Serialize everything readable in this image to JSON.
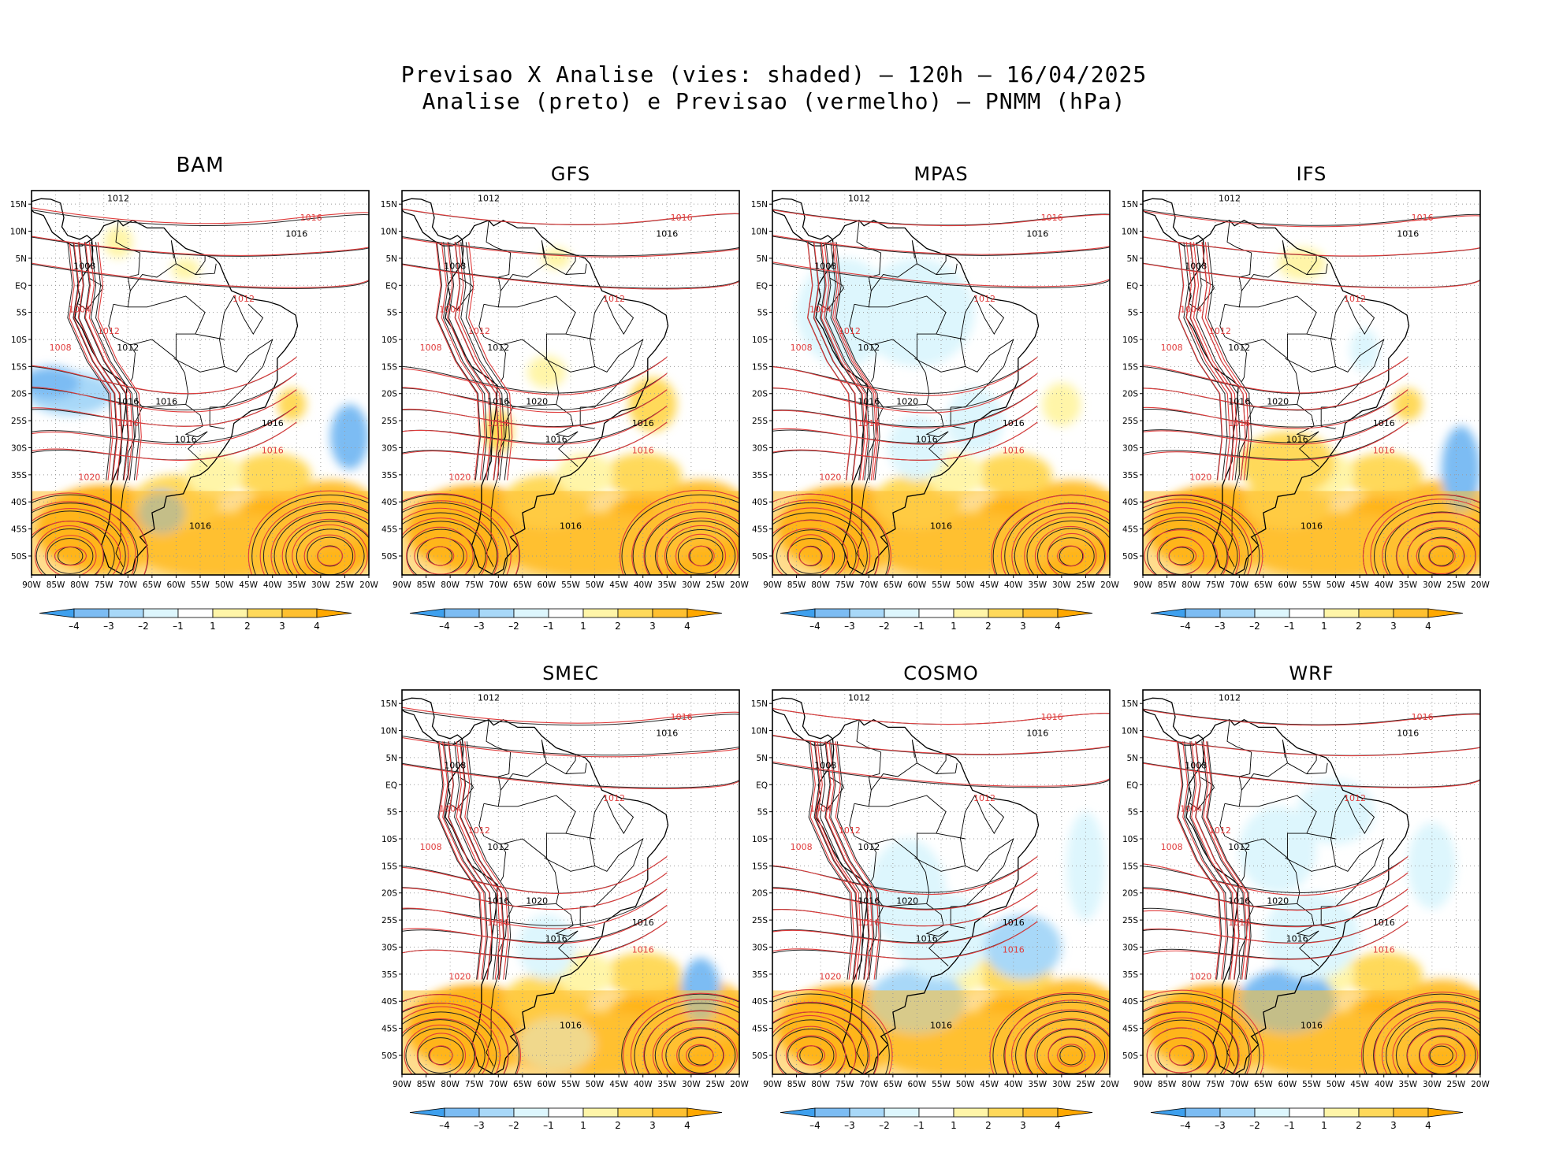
{
  "title": {
    "line1": "Previsao X Analise (vies: shaded) – 120h – 16/04/2025",
    "line2": "Analise (preto) e Previsao (vermelho) – PNMM (hPa)"
  },
  "axes": {
    "lat_labels": [
      "15N",
      "10N",
      "5N",
      "EQ",
      "5S",
      "10S",
      "15S",
      "20S",
      "25S",
      "30S",
      "35S",
      "40S",
      "45S",
      "50S"
    ],
    "lon_labels": [
      "90W",
      "85W",
      "80W",
      "75W",
      "70W",
      "65W",
      "60W",
      "55W",
      "50W",
      "45W",
      "40W",
      "35W",
      "30W",
      "25W",
      "20W"
    ]
  },
  "colorbar": {
    "labels": [
      "–4",
      "–3",
      "–2",
      "–1",
      "1",
      "2",
      "3",
      "4"
    ],
    "colors": [
      "#3ea0ee",
      "#7cbcf3",
      "#a8d8f8",
      "#ddf6fd",
      "#ffffff",
      "#fff5a8",
      "#ffd95a",
      "#ffc030",
      "#ffa800"
    ]
  },
  "colors": {
    "analysis": "#222222",
    "forecast": "#e03c3c",
    "frame": "#000000",
    "grid": "#9a9a9a"
  },
  "panels": [
    {
      "name": "BAM",
      "labels_black": [
        "1012",
        "1016",
        "1008",
        "1012",
        "1016",
        "1016",
        "1016",
        "1016",
        "1016"
      ],
      "labels_red": [
        "1016",
        "1012",
        "1020",
        "1016",
        "1016",
        "1012",
        "1008",
        "1004"
      ]
    },
    {
      "name": "GFS",
      "labels_black": [
        "1012",
        "1016",
        "1008",
        "1012",
        "1016",
        "1016",
        "1016",
        "1016",
        "1020"
      ],
      "labels_red": [
        "1016",
        "1012",
        "1020",
        "1016",
        "1016",
        "1012",
        "1008",
        "1004"
      ]
    },
    {
      "name": "MPAS",
      "labels_black": [
        "1012",
        "1016",
        "1008",
        "1012",
        "1016",
        "1016",
        "1016",
        "1016",
        "1020"
      ],
      "labels_red": [
        "1016",
        "1012",
        "1020",
        "1016",
        "1016",
        "1012",
        "1008",
        "1004"
      ]
    },
    {
      "name": "IFS",
      "labels_black": [
        "1012",
        "1016",
        "1008",
        "1012",
        "1016",
        "1016",
        "1016",
        "1016",
        "1020"
      ],
      "labels_red": [
        "1016",
        "1012",
        "1020",
        "1016",
        "1016",
        "1012",
        "1008",
        "1004"
      ]
    },
    {
      "name": "SMEC",
      "labels_black": [
        "1012",
        "1016",
        "1008",
        "1012",
        "1016",
        "1016",
        "1016",
        "1016",
        "1020"
      ],
      "labels_red": [
        "1016",
        "1012",
        "1020",
        "1016",
        "1016",
        "1012",
        "1008",
        "1004"
      ]
    },
    {
      "name": "COSMO",
      "labels_black": [
        "1012",
        "1016",
        "1008",
        "1012",
        "1016",
        "1016",
        "1016",
        "1016",
        "1020"
      ],
      "labels_red": [
        "1016",
        "1012",
        "1020",
        "1016",
        "1016",
        "1012",
        "1008",
        "1004"
      ]
    },
    {
      "name": "WRF",
      "labels_black": [
        "1012",
        "1016",
        "1008",
        "1012",
        "1016",
        "1016",
        "1016",
        "1016",
        "1020"
      ],
      "labels_red": [
        "1016",
        "1012",
        "1020",
        "1016",
        "1016",
        "1012",
        "1008",
        "1004"
      ]
    }
  ]
}
